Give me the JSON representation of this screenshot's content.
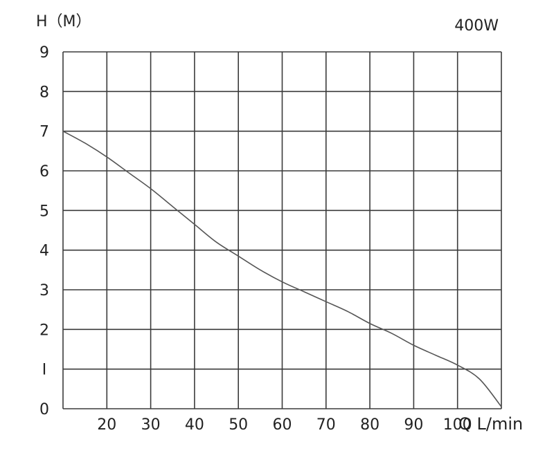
{
  "chart_data": {
    "type": "line",
    "title": "400W",
    "ylabel": "H（M）",
    "xlabel": "Q L/min",
    "xlim": [
      10,
      110
    ],
    "ylim": [
      0,
      9
    ],
    "grid": true,
    "x_ticks": [
      20,
      30,
      40,
      50,
      60,
      70,
      80,
      90,
      100
    ],
    "x_tick_labels": [
      "20",
      "30",
      "40",
      "50",
      "60",
      "70",
      "80",
      "90",
      "100"
    ],
    "y_ticks": [
      0,
      1,
      2,
      3,
      4,
      5,
      6,
      7,
      8,
      9
    ],
    "y_tick_labels": [
      "0",
      "I",
      "2",
      "3",
      "4",
      "5",
      "6",
      "7",
      "8",
      "9"
    ],
    "series": [
      {
        "x": [
          10,
          15,
          20,
          25,
          30,
          35,
          40,
          45,
          50,
          55,
          60,
          65,
          70,
          75,
          80,
          85,
          90,
          95,
          100,
          105,
          110
        ],
        "y": [
          7.0,
          6.7,
          6.35,
          5.95,
          5.55,
          5.1,
          4.65,
          4.2,
          3.85,
          3.5,
          3.2,
          2.95,
          2.7,
          2.45,
          2.15,
          1.9,
          1.6,
          1.35,
          1.1,
          0.75,
          0.05
        ]
      }
    ],
    "colors": {
      "line": "#555555",
      "grid": "#3a3a3a",
      "text": "#222222"
    }
  }
}
